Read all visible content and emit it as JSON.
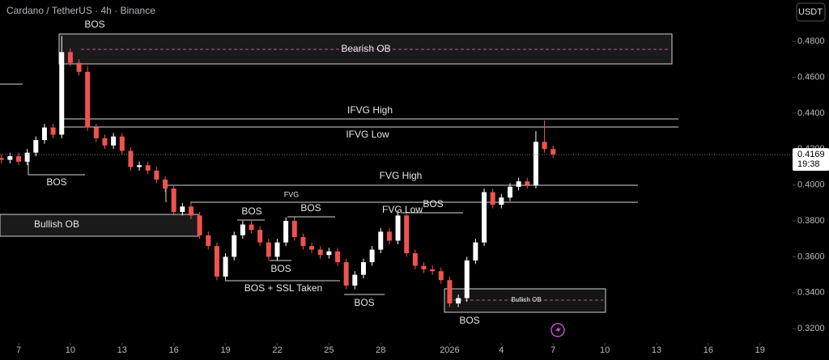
{
  "chart_data": {
    "type": "candlestick",
    "title": "Cardano / TetherUS · 4h · Binance",
    "currency": "USDT",
    "up_color": "#ffffff",
    "down_color": "#ef5350",
    "x": [
      -1,
      -0.5,
      0,
      0.5,
      1,
      1.5,
      2,
      2.5,
      3,
      3.5,
      4,
      4.5,
      5,
      5.5,
      6,
      6.5,
      7,
      7.5,
      8,
      8.5,
      9,
      9.5,
      10,
      10.5,
      11,
      11.5,
      12,
      12.5,
      13,
      13.5,
      14,
      14.5,
      15,
      15.5,
      16,
      16.5,
      17,
      17.5,
      18,
      18.5,
      19,
      19.5,
      20,
      20.5,
      21,
      21.5,
      22,
      22.5,
      23,
      23.5,
      24,
      24.5,
      25,
      25.5,
      26,
      26.5,
      27,
      27.5,
      28,
      28.5,
      29,
      29.5,
      30,
      30.5,
      31
    ],
    "open": [
      0.415,
      0.414,
      0.416,
      0.413,
      0.418,
      0.425,
      0.432,
      0.428,
      0.474,
      0.468,
      0.463,
      0.432,
      0.426,
      0.422,
      0.427,
      0.419,
      0.41,
      0.411,
      0.408,
      0.403,
      0.398,
      0.385,
      0.388,
      0.383,
      0.372,
      0.366,
      0.349,
      0.36,
      0.372,
      0.378,
      0.375,
      0.368,
      0.36,
      0.368,
      0.38,
      0.371,
      0.366,
      0.364,
      0.361,
      0.363,
      0.357,
      0.344,
      0.35,
      0.357,
      0.364,
      0.374,
      0.369,
      0.383,
      0.362,
      0.355,
      0.353,
      0.352,
      0.347,
      0.334,
      0.337,
      0.358,
      0.368,
      0.396,
      0.389,
      0.393,
      0.399,
      0.402,
      0.4,
      0.424,
      0.42
    ],
    "high": [
      0.417,
      0.418,
      0.418,
      0.42,
      0.427,
      0.434,
      0.434,
      0.483,
      0.476,
      0.47,
      0.466,
      0.434,
      0.428,
      0.429,
      0.429,
      0.421,
      0.413,
      0.413,
      0.41,
      0.405,
      0.4,
      0.39,
      0.39,
      0.385,
      0.374,
      0.368,
      0.362,
      0.374,
      0.38,
      0.38,
      0.377,
      0.37,
      0.37,
      0.382,
      0.382,
      0.373,
      0.368,
      0.366,
      0.365,
      0.365,
      0.359,
      0.352,
      0.359,
      0.366,
      0.376,
      0.376,
      0.386,
      0.385,
      0.364,
      0.357,
      0.355,
      0.354,
      0.349,
      0.339,
      0.36,
      0.37,
      0.398,
      0.398,
      0.395,
      0.401,
      0.404,
      0.404,
      0.43,
      0.436,
      0.422
    ],
    "low": [
      0.412,
      0.412,
      0.411,
      0.411,
      0.416,
      0.423,
      0.426,
      0.426,
      0.466,
      0.461,
      0.43,
      0.424,
      0.42,
      0.42,
      0.417,
      0.408,
      0.408,
      0.406,
      0.401,
      0.396,
      0.383,
      0.383,
      0.381,
      0.37,
      0.364,
      0.347,
      0.347,
      0.358,
      0.37,
      0.373,
      0.366,
      0.358,
      0.358,
      0.366,
      0.369,
      0.364,
      0.362,
      0.359,
      0.359,
      0.355,
      0.342,
      0.342,
      0.348,
      0.355,
      0.362,
      0.367,
      0.367,
      0.36,
      0.353,
      0.351,
      0.35,
      0.345,
      0.332,
      0.332,
      0.335,
      0.356,
      0.366,
      0.387,
      0.387,
      0.391,
      0.397,
      0.398,
      0.398,
      0.418,
      0.415
    ],
    "close": [
      0.414,
      0.416,
      0.413,
      0.418,
      0.425,
      0.432,
      0.428,
      0.474,
      0.468,
      0.463,
      0.432,
      0.426,
      0.422,
      0.427,
      0.419,
      0.41,
      0.411,
      0.408,
      0.403,
      0.398,
      0.385,
      0.388,
      0.383,
      0.372,
      0.366,
      0.349,
      0.36,
      0.372,
      0.378,
      0.375,
      0.368,
      0.36,
      0.368,
      0.38,
      0.371,
      0.366,
      0.364,
      0.361,
      0.363,
      0.357,
      0.344,
      0.35,
      0.357,
      0.364,
      0.374,
      0.369,
      0.383,
      0.362,
      0.355,
      0.353,
      0.352,
      0.347,
      0.334,
      0.337,
      0.358,
      0.368,
      0.396,
      0.389,
      0.393,
      0.399,
      0.402,
      0.4,
      0.424,
      0.42,
      0.417
    ],
    "last_price": 0.4169,
    "countdown": "19:38",
    "xlim": [
      -1.08,
      44.7
    ],
    "xticks": [
      {
        "value": 0,
        "label": "7"
      },
      {
        "value": 3,
        "label": "10"
      },
      {
        "value": 6,
        "label": "13"
      },
      {
        "value": 9,
        "label": "16"
      },
      {
        "value": 12,
        "label": "19"
      },
      {
        "value": 15,
        "label": "22"
      },
      {
        "value": 18,
        "label": "25"
      },
      {
        "value": 21,
        "label": "28"
      },
      {
        "value": 25,
        "label": "2026"
      },
      {
        "value": 28,
        "label": "4"
      },
      {
        "value": 31,
        "label": "7"
      },
      {
        "value": 34,
        "label": "10"
      },
      {
        "value": 37,
        "label": "13"
      },
      {
        "value": 40,
        "label": "16"
      },
      {
        "value": 43,
        "label": "19"
      }
    ],
    "ylim": [
      0.3138,
      0.503
    ],
    "yticks": [
      {
        "value": 0.32,
        "label": "0.3200"
      },
      {
        "value": 0.34,
        "label": "0.3400"
      },
      {
        "value": 0.36,
        "label": "0.3600"
      },
      {
        "value": 0.38,
        "label": "0.3800"
      },
      {
        "value": 0.4,
        "label": "0.4000"
      },
      {
        "value": 0.42,
        "label": "0.4200"
      },
      {
        "value": 0.44,
        "label": "0.4400"
      },
      {
        "value": 0.46,
        "label": "0.4600"
      },
      {
        "value": 0.48,
        "label": "0.4800"
      }
    ],
    "annotations": [
      "BOS",
      "Bearish OB",
      "IFVG High",
      "IFVG Low",
      "BOS",
      "FVG High",
      "FVG",
      "BOS",
      "FVG Low",
      "Bullish OB",
      "BOS",
      "BOS",
      "BOS",
      "BOS + SSL Taken",
      "BOS",
      "Bullish OB",
      "BOS"
    ]
  }
}
